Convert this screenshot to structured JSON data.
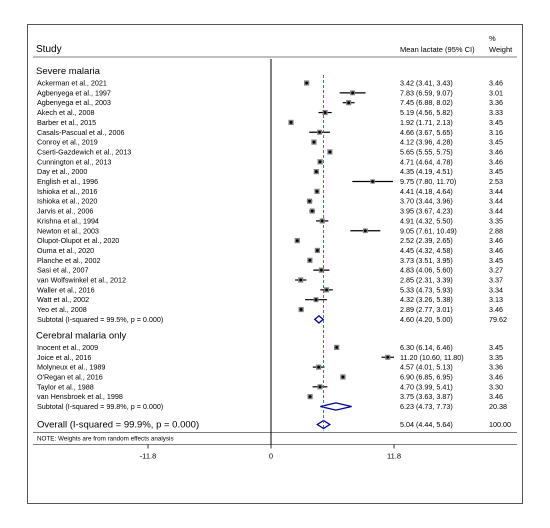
{
  "chart_data": {
    "type": "forest",
    "columns": {
      "study": "Study",
      "estimate": "Mean lactate (95% CI)",
      "weight_symbol": "%",
      "weight": "Weight"
    },
    "groups": [
      {
        "name": "Severe malaria",
        "studies": [
          {
            "label": "Ackerman et al., 2021",
            "mean": 3.42,
            "lo": 3.41,
            "hi": 3.43,
            "ci": "3.42 (3.41, 3.43)",
            "weight": "3.46"
          },
          {
            "label": "Agbenyega et al., 1997",
            "mean": 7.83,
            "lo": 6.59,
            "hi": 9.07,
            "ci": "7.83 (6.59, 9.07)",
            "weight": "3.01"
          },
          {
            "label": "Agbenyega et al., 2003",
            "mean": 7.45,
            "lo": 6.88,
            "hi": 8.02,
            "ci": "7.45 (6.88, 8.02)",
            "weight": "3.36"
          },
          {
            "label": "Akech et al., 2008",
            "mean": 5.19,
            "lo": 4.56,
            "hi": 5.82,
            "ci": "5.19 (4.56, 5.82)",
            "weight": "3.33"
          },
          {
            "label": "Barber et al., 2015",
            "mean": 1.92,
            "lo": 1.71,
            "hi": 2.13,
            "ci": "1.92 (1.71, 2.13)",
            "weight": "3.45"
          },
          {
            "label": "Casals-Pascual et al., 2006",
            "mean": 4.66,
            "lo": 3.67,
            "hi": 5.65,
            "ci": "4.66 (3.67, 5.65)",
            "weight": "3.16"
          },
          {
            "label": "Conroy et al., 2019",
            "mean": 4.12,
            "lo": 3.96,
            "hi": 4.28,
            "ci": "4.12 (3.96, 4.28)",
            "weight": "3.45"
          },
          {
            "label": "Cserti-Gazdewich et al., 2013",
            "mean": 5.65,
            "lo": 5.55,
            "hi": 5.75,
            "ci": "5.65 (5.55, 5.75)",
            "weight": "3.46"
          },
          {
            "label": "Cunnington et al., 2013",
            "mean": 4.71,
            "lo": 4.64,
            "hi": 4.78,
            "ci": "4.71 (4.64, 4.78)",
            "weight": "3.46"
          },
          {
            "label": "Day et al., 2000",
            "mean": 4.35,
            "lo": 4.19,
            "hi": 4.51,
            "ci": "4.35 (4.19, 4.51)",
            "weight": "3.45"
          },
          {
            "label": "English et al., 1996",
            "mean": 9.75,
            "lo": 7.8,
            "hi": 11.7,
            "ci": "9.75 (7.80, 11.70)",
            "weight": "2.53"
          },
          {
            "label": "Ishioka et al., 2016",
            "mean": 4.41,
            "lo": 4.18,
            "hi": 4.64,
            "ci": "4.41 (4.18, 4.64)",
            "weight": "3.44"
          },
          {
            "label": "Ishioka et al., 2020",
            "mean": 3.7,
            "lo": 3.44,
            "hi": 3.96,
            "ci": "3.70 (3.44, 3.96)",
            "weight": "3.44"
          },
          {
            "label": "Jarvis et al., 2006",
            "mean": 3.95,
            "lo": 3.67,
            "hi": 4.23,
            "ci": "3.95 (3.67, 4.23)",
            "weight": "3.44"
          },
          {
            "label": "Krishna et al., 1994",
            "mean": 4.91,
            "lo": 4.32,
            "hi": 5.5,
            "ci": "4.91 (4.32, 5.50)",
            "weight": "3.35"
          },
          {
            "label": "Newton et al., 2003",
            "mean": 9.05,
            "lo": 7.61,
            "hi": 10.49,
            "ci": "9.05 (7.61, 10.49)",
            "weight": "2.88"
          },
          {
            "label": "Olupot-Olupot et al., 2020",
            "mean": 2.52,
            "lo": 2.39,
            "hi": 2.65,
            "ci": "2.52 (2.39, 2.65)",
            "weight": "3.46"
          },
          {
            "label": "Ouma et al., 2020",
            "mean": 4.45,
            "lo": 4.32,
            "hi": 4.58,
            "ci": "4.45 (4.32, 4.58)",
            "weight": "3.46"
          },
          {
            "label": "Planche et al., 2002",
            "mean": 3.73,
            "lo": 3.51,
            "hi": 3.95,
            "ci": "3.73 (3.51, 3.95)",
            "weight": "3.45"
          },
          {
            "label": "Sasi et al., 2007",
            "mean": 4.83,
            "lo": 4.06,
            "hi": 5.6,
            "ci": "4.83 (4.06, 5.60)",
            "weight": "3.27"
          },
          {
            "label": "van Wolfswinkel et al., 2012",
            "mean": 2.85,
            "lo": 2.31,
            "hi": 3.39,
            "ci": "2.85 (2.31, 3.39)",
            "weight": "3.37"
          },
          {
            "label": "Waller et al., 2016",
            "mean": 5.33,
            "lo": 4.73,
            "hi": 5.93,
            "ci": "5.33 (4.73, 5.93)",
            "weight": "3.34"
          },
          {
            "label": "Watt et al., 2002",
            "mean": 4.32,
            "lo": 3.26,
            "hi": 5.38,
            "ci": "4.32 (3.26, 5.38)",
            "weight": "3.13"
          },
          {
            "label": "Yeo et al., 2008",
            "mean": 2.89,
            "lo": 2.77,
            "hi": 3.01,
            "ci": "2.89 (2.77, 3.01)",
            "weight": "3.46"
          }
        ],
        "subtotal": {
          "label": "Subtotal  (I-squared = 99.5%, p = 0.000)",
          "mean": 4.6,
          "lo": 4.2,
          "hi": 5.0,
          "ci": "4.60 (4.20, 5.00)",
          "weight": "79.62"
        }
      },
      {
        "name": "Cerebral malaria only",
        "studies": [
          {
            "label": "Inocent et al., 2009",
            "mean": 6.3,
            "lo": 6.14,
            "hi": 6.46,
            "ci": "6.30 (6.14, 6.46)",
            "weight": "3.45"
          },
          {
            "label": "Joice et al., 2016",
            "mean": 11.2,
            "lo": 10.6,
            "hi": 11.8,
            "ci": "11.20 (10.60, 11.80)",
            "weight": "3.35"
          },
          {
            "label": "Molyneux et al., 1989",
            "mean": 4.57,
            "lo": 4.01,
            "hi": 5.13,
            "ci": "4.57 (4.01, 5.13)",
            "weight": "3.36"
          },
          {
            "label": "O'Regan et al., 2016",
            "mean": 6.9,
            "lo": 6.85,
            "hi": 6.95,
            "ci": "6.90 (6.85, 6.95)",
            "weight": "3.46"
          },
          {
            "label": "Taylor et al., 1988",
            "mean": 4.7,
            "lo": 3.99,
            "hi": 5.41,
            "ci": "4.70 (3.99, 5.41)",
            "weight": "3.30"
          },
          {
            "label": "van Hensbroek et al., 1998",
            "mean": 3.75,
            "lo": 3.63,
            "hi": 3.87,
            "ci": "3.75 (3.63, 3.87)",
            "weight": "3.46"
          }
        ],
        "subtotal": {
          "label": "Subtotal  (I-squared = 99.8%, p = 0.000)",
          "mean": 6.23,
          "lo": 4.73,
          "hi": 7.73,
          "ci": "6.23 (4.73, 7.73)",
          "weight": "20.38"
        }
      }
    ],
    "overall": {
      "label": "Overall  (I-squared = 99.9%, p = 0.000)",
      "mean": 5.04,
      "lo": 4.44,
      "hi": 5.64,
      "ci": "5.04 (4.44, 5.64)",
      "weight": "100.00"
    },
    "note": "NOTE: Weights are from random effects analysis",
    "x_axis": {
      "min": -11.8,
      "max": 11.8,
      "ticks": [
        -11.8,
        0,
        11.8
      ],
      "tick_labels": [
        "-11.8",
        "0",
        "11.8"
      ]
    },
    "colors": {
      "box": "#808080",
      "line": "#000000",
      "diamond": "#00008b",
      "ref_dash": "#cc3300"
    }
  }
}
